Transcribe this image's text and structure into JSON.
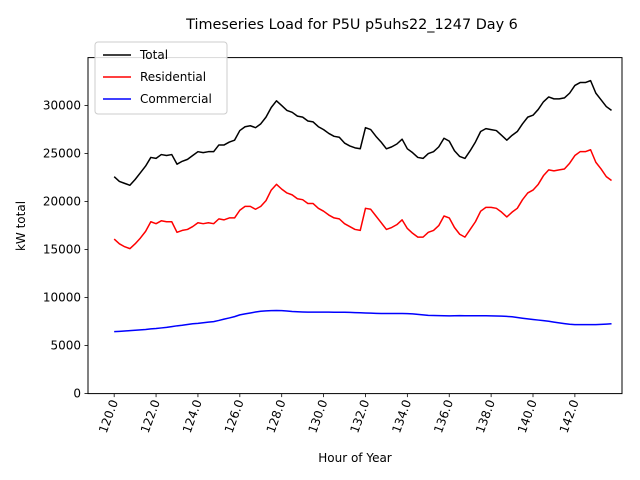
{
  "chart_data": {
    "type": "line",
    "title": "Timeseries Load for P5U p5uhs22_1247  Day 6",
    "xlabel": "Hour of Year",
    "ylabel": "kW total",
    "xlim": [
      118.75,
      144.25
    ],
    "ylim": [
      0,
      35000
    ],
    "xticks": [
      120,
      122,
      124,
      126,
      128,
      130,
      132,
      134,
      136,
      138,
      140,
      142
    ],
    "xtick_labels": [
      "120.0",
      "122.0",
      "124.0",
      "126.0",
      "128.0",
      "130.0",
      "132.0",
      "134.0",
      "136.0",
      "138.0",
      "140.0",
      "142.0"
    ],
    "yticks": [
      0,
      5000,
      10000,
      15000,
      20000,
      25000,
      30000
    ],
    "ytick_labels": [
      "0",
      "5000",
      "10000",
      "15000",
      "20000",
      "25000",
      "30000"
    ],
    "legend_position": "top-left",
    "x": [
      120.0,
      120.25,
      120.5,
      120.75,
      121.0,
      121.25,
      121.5,
      121.75,
      122.0,
      122.25,
      122.5,
      122.75,
      123.0,
      123.25,
      123.5,
      123.75,
      124.0,
      124.25,
      124.5,
      124.75,
      125.0,
      125.25,
      125.5,
      125.75,
      126.0,
      126.25,
      126.5,
      126.75,
      127.0,
      127.25,
      127.5,
      127.75,
      128.0,
      128.25,
      128.5,
      128.75,
      129.0,
      129.25,
      129.5,
      129.75,
      130.0,
      130.25,
      130.5,
      130.75,
      131.0,
      131.25,
      131.5,
      131.75,
      132.0,
      132.25,
      132.5,
      132.75,
      133.0,
      133.25,
      133.5,
      133.75,
      134.0,
      134.25,
      134.5,
      134.75,
      135.0,
      135.25,
      135.5,
      135.75,
      136.0,
      136.25,
      136.5,
      136.75,
      137.0,
      137.25,
      137.5,
      137.75,
      138.0,
      138.25,
      138.5,
      138.75,
      139.0,
      139.25,
      139.5,
      139.75,
      140.0,
      140.25,
      140.5,
      140.75,
      141.0,
      141.25,
      141.5,
      141.75,
      142.0,
      142.25,
      142.5,
      142.75,
      143.0,
      143.25,
      143.5,
      143.75
    ],
    "series": [
      {
        "name": "Total",
        "color": "#000000",
        "values": [
          22600,
          22100,
          21900,
          21700,
          22300,
          23000,
          23700,
          24600,
          24500,
          24900,
          24800,
          24900,
          23900,
          24200,
          24400,
          24800,
          25200,
          25100,
          25200,
          25200,
          25900,
          25900,
          26200,
          26400,
          27400,
          27800,
          27900,
          27700,
          28100,
          28800,
          29800,
          30500,
          30000,
          29500,
          29300,
          28900,
          28800,
          28400,
          28300,
          27800,
          27500,
          27100,
          26800,
          26700,
          26100,
          25800,
          25600,
          25500,
          27700,
          27500,
          26800,
          26200,
          25500,
          25700,
          26000,
          26500,
          25500,
          25100,
          24600,
          24500,
          25000,
          25200,
          25700,
          26600,
          26300,
          25300,
          24700,
          24500,
          25300,
          26200,
          27300,
          27600,
          27500,
          27400,
          26900,
          26400,
          26900,
          27300,
          28100,
          28800,
          29000,
          29600,
          30400,
          30900,
          30700,
          30700,
          30800,
          31300,
          32100,
          32400,
          32400,
          32600,
          31300,
          30600,
          29900,
          29500
        ]
      },
      {
        "name": "Residential",
        "color": "#ff0000",
        "values": [
          16100,
          15600,
          15300,
          15100,
          15600,
          16200,
          16900,
          17900,
          17700,
          18000,
          17900,
          17900,
          16800,
          17000,
          17100,
          17400,
          17800,
          17700,
          17800,
          17700,
          18200,
          18100,
          18300,
          18300,
          19100,
          19500,
          19500,
          19200,
          19500,
          20100,
          21200,
          21800,
          21300,
          20900,
          20700,
          20300,
          20200,
          19800,
          19800,
          19300,
          19000,
          18600,
          18300,
          18200,
          17700,
          17400,
          17100,
          17000,
          19300,
          19200,
          18500,
          17800,
          17100,
          17300,
          17600,
          18100,
          17200,
          16700,
          16300,
          16300,
          16800,
          17000,
          17500,
          18500,
          18300,
          17300,
          16600,
          16300,
          17100,
          17900,
          19000,
          19400,
          19400,
          19300,
          18900,
          18400,
          18900,
          19300,
          20200,
          20900,
          21200,
          21800,
          22700,
          23300,
          23200,
          23300,
          23400,
          24000,
          24800,
          25200,
          25200,
          25400,
          24100,
          23400,
          22600,
          22200
        ]
      },
      {
        "name": "Commercial",
        "color": "#0000ff",
        "values": [
          6450,
          6480,
          6520,
          6560,
          6600,
          6640,
          6680,
          6740,
          6780,
          6840,
          6900,
          6980,
          7060,
          7120,
          7200,
          7280,
          7320,
          7380,
          7440,
          7500,
          7620,
          7760,
          7880,
          8020,
          8200,
          8300,
          8400,
          8500,
          8580,
          8620,
          8640,
          8650,
          8640,
          8600,
          8550,
          8520,
          8500,
          8490,
          8490,
          8490,
          8490,
          8490,
          8480,
          8480,
          8470,
          8460,
          8440,
          8420,
          8400,
          8380,
          8360,
          8350,
          8340,
          8340,
          8340,
          8340,
          8330,
          8300,
          8250,
          8200,
          8150,
          8130,
          8120,
          8110,
          8100,
          8110,
          8120,
          8110,
          8110,
          8110,
          8110,
          8110,
          8100,
          8080,
          8070,
          8040,
          8000,
          7930,
          7850,
          7780,
          7720,
          7660,
          7600,
          7540,
          7450,
          7370,
          7290,
          7220,
          7190,
          7180,
          7180,
          7180,
          7190,
          7210,
          7240,
          7280
        ]
      }
    ]
  }
}
